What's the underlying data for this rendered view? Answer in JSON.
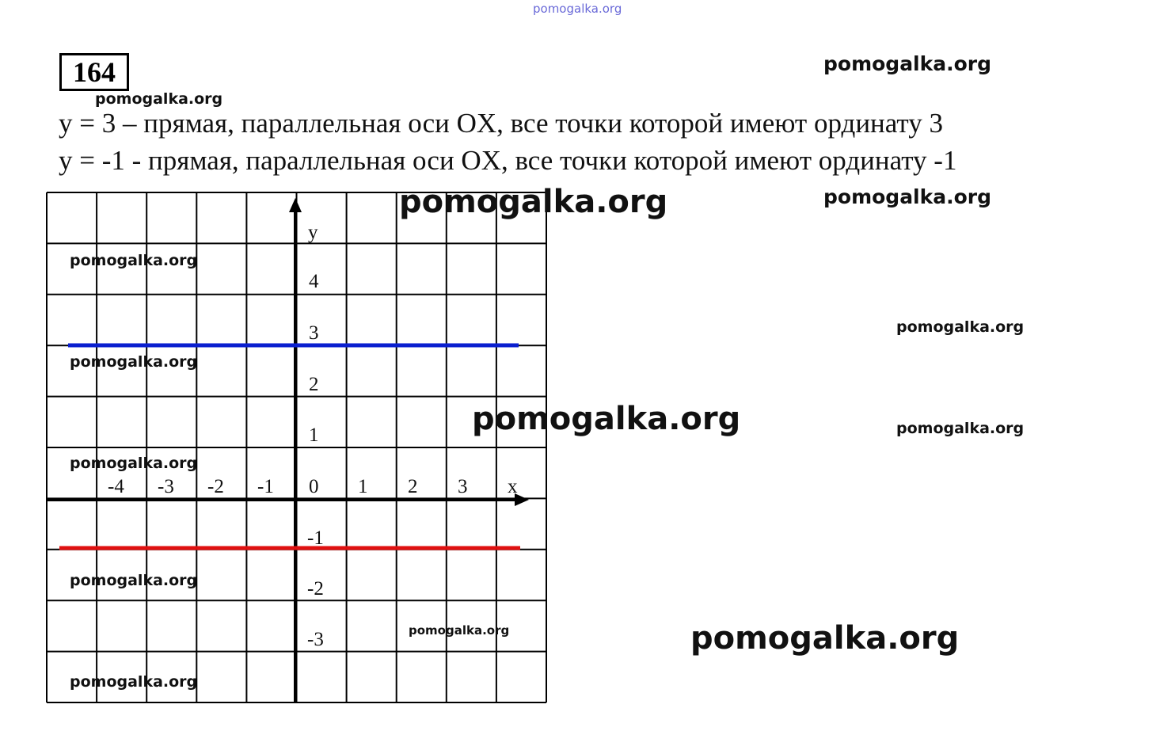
{
  "problem_number": "164",
  "lines": [
    "y = 3 – прямая, параллельная оси OX, все точки которой имеют ординату 3",
    "y = -1 - прямая, параллельная оси OX, все точки которой имеют ординату -1"
  ],
  "graph": {
    "x_axis_label": "x",
    "y_axis_label": "y",
    "x_ticks": [
      "-4",
      "-3",
      "-2",
      "-1",
      "0",
      "1",
      "2",
      "3"
    ],
    "y_ticks": [
      "4",
      "3",
      "2",
      "1",
      "-1",
      "-2",
      "-3"
    ],
    "lines": [
      {
        "equation": "y = 3",
        "color": "#0a1fcf"
      },
      {
        "equation": "y = -1",
        "color": "#e01010"
      }
    ]
  },
  "watermarks": [
    "pomogalka.org",
    "pomogalka.org",
    "pomogalka.org",
    "pomogalka.org",
    "pomogalka.org",
    "pomogalka.org",
    "pomogalka.org",
    "pomogalka.org",
    "pomogalka.org",
    "pomogalka.org",
    "pomogalka.org",
    "pomogalka.org",
    "pomogalka.org",
    "pomogalka.org",
    "pomogalka.org"
  ]
}
